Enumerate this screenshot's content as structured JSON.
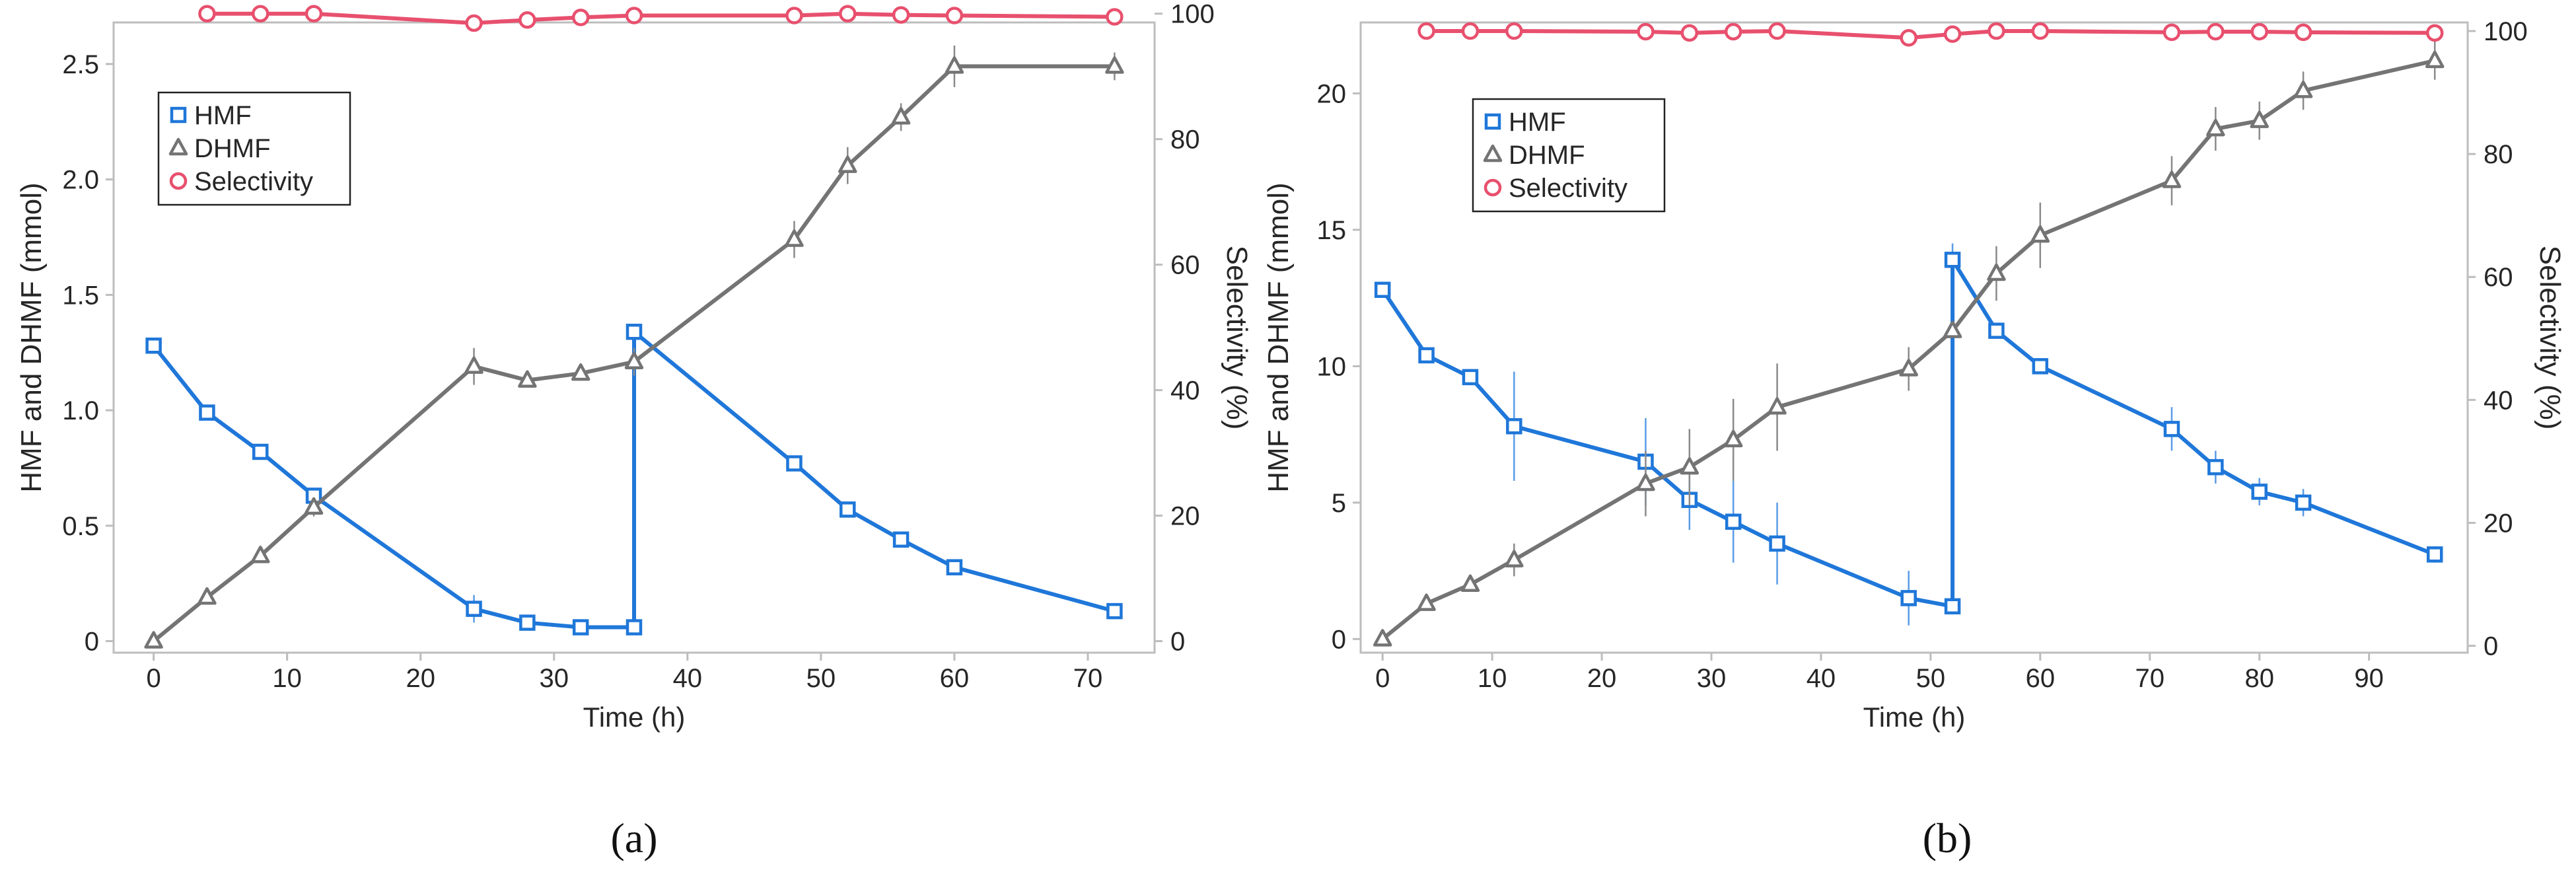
{
  "colors": {
    "hmf": "#1f77d9",
    "dhmf": "#747474",
    "selectivity": "#e8506e",
    "frame": "#bdbdbd",
    "error": "#8a8a8a"
  },
  "chart_data": [
    {
      "id": "a",
      "panel_label": "(a)",
      "type": "line",
      "xlabel": "Time (h)",
      "ylabel": "HMF and DHMF (mmol)",
      "y2label": "Selectivity (%)",
      "xlim": [
        -3,
        75
      ],
      "xticks": [
        0,
        10,
        20,
        30,
        40,
        50,
        60,
        70
      ],
      "ylim": [
        -0.05,
        2.68
      ],
      "yticks": [
        0,
        0.5,
        1.0,
        1.5,
        2.0,
        2.5
      ],
      "ytick_labels": [
        "0",
        "0.5",
        "1.0",
        "1.5",
        "2.0",
        "2.5"
      ],
      "y2lim": [
        -1.84,
        98.6
      ],
      "y2ticks": [
        0,
        20,
        40,
        60,
        80,
        100
      ],
      "legend": [
        "HMF",
        "DHMF",
        "Selectivity"
      ],
      "legend_position": "top-left",
      "series": [
        {
          "name": "HMF",
          "axis": "left",
          "marker": "square",
          "x": [
            0,
            4,
            8,
            12,
            24,
            28,
            32,
            36,
            36,
            48,
            52,
            56,
            60,
            72
          ],
          "y": [
            1.28,
            0.99,
            0.82,
            0.63,
            0.14,
            0.08,
            0.06,
            0.06,
            1.34,
            0.77,
            0.57,
            0.44,
            0.32,
            0.13
          ],
          "err": [
            0,
            0,
            0.03,
            0,
            0.06,
            0,
            0,
            0,
            0,
            0,
            0,
            0.03,
            0.03,
            0
          ]
        },
        {
          "name": "DHMF",
          "axis": "left",
          "marker": "triangle",
          "x": [
            0,
            4,
            8,
            12,
            24,
            28,
            32,
            36,
            48,
            52,
            56,
            60,
            72
          ],
          "y": [
            0.0,
            0.19,
            0.37,
            0.58,
            1.19,
            1.13,
            1.16,
            1.21,
            1.74,
            2.06,
            2.27,
            2.49,
            2.49
          ],
          "err": [
            0,
            0,
            0,
            0.04,
            0.08,
            0,
            0,
            0.06,
            0.08,
            0.08,
            0.06,
            0.09,
            0.06
          ]
        },
        {
          "name": "Selectivity",
          "axis": "right",
          "marker": "circle",
          "x": [
            4,
            8,
            12,
            24,
            28,
            32,
            36,
            48,
            52,
            56,
            60,
            72
          ],
          "y": [
            100,
            100,
            100,
            98.5,
            99,
            99.4,
            99.7,
            99.7,
            100,
            99.8,
            99.7,
            99.5
          ],
          "err": []
        }
      ]
    },
    {
      "id": "b",
      "panel_label": "(b)",
      "type": "line",
      "xlabel": "Time (h)",
      "ylabel": "HMF and DHMF (mmol)",
      "y2label": "Selectivity (%)",
      "xlim": [
        -2,
        99
      ],
      "xticks": [
        0,
        10,
        20,
        30,
        40,
        50,
        60,
        70,
        80,
        90
      ],
      "ylim": [
        -0.5,
        22.6
      ],
      "yticks": [
        0,
        5,
        10,
        15,
        20
      ],
      "ytick_labels": [
        "0",
        "5",
        "10",
        "15",
        "20"
      ],
      "y2lim": [
        -1.12,
        101.4
      ],
      "y2ticks": [
        0,
        20,
        40,
        60,
        80,
        100
      ],
      "legend": [
        "HMF",
        "DHMF",
        "Selectivity"
      ],
      "legend_position": "top-left",
      "series": [
        {
          "name": "HMF",
          "axis": "left",
          "marker": "square",
          "x": [
            0,
            4,
            8,
            12,
            24,
            28,
            32,
            36,
            48,
            52,
            52,
            56,
            60,
            72,
            76,
            80,
            84,
            96
          ],
          "y": [
            12.8,
            10.4,
            9.6,
            7.8,
            6.5,
            5.1,
            4.3,
            3.5,
            1.5,
            1.2,
            13.9,
            11.3,
            10.0,
            7.7,
            6.3,
            5.4,
            5.0,
            3.1
          ],
          "err": [
            0,
            0,
            0.3,
            2.0,
            1.6,
            1.1,
            1.5,
            1.5,
            1.0,
            0,
            0.6,
            0,
            0,
            0.8,
            0.6,
            0.5,
            0.5,
            0.3
          ]
        },
        {
          "name": "DHMF",
          "axis": "left",
          "marker": "triangle",
          "x": [
            0,
            4,
            8,
            12,
            24,
            28,
            32,
            36,
            48,
            52,
            56,
            60,
            72,
            76,
            80,
            84,
            96
          ],
          "y": [
            0.0,
            1.3,
            2.0,
            2.9,
            5.7,
            6.3,
            7.3,
            8.5,
            9.9,
            11.3,
            13.4,
            14.8,
            16.8,
            18.7,
            19.0,
            20.1,
            21.2
          ],
          "err": [
            0,
            0,
            0,
            0.6,
            1.2,
            1.4,
            1.5,
            1.6,
            0.8,
            0,
            1.0,
            1.2,
            0.9,
            0.8,
            0.7,
            0.7,
            0.7
          ]
        },
        {
          "name": "Selectivity",
          "axis": "right",
          "marker": "circle",
          "x": [
            4,
            8,
            12,
            24,
            28,
            32,
            36,
            48,
            52,
            56,
            60,
            72,
            76,
            80,
            84,
            96
          ],
          "y": [
            100,
            100,
            100,
            99.9,
            99.7,
            99.9,
            100,
            98.9,
            99.5,
            100,
            100,
            99.8,
            99.9,
            99.9,
            99.8,
            99.7
          ],
          "err": []
        }
      ]
    }
  ]
}
